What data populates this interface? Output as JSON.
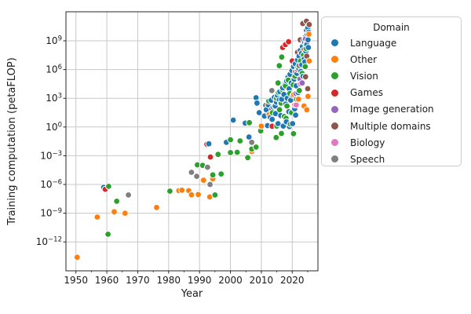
{
  "chart_data": {
    "type": "scatter",
    "title": "",
    "xlabel": "Year",
    "ylabel": "Training computation (petaFLOP)",
    "legend_title": "Domain",
    "legend_position": "upper right",
    "grid": true,
    "x_axis": {
      "min": 1946.8,
      "max": 2028.3,
      "major_ticks": [
        1950,
        1960,
        1970,
        1980,
        1990,
        2000,
        2010,
        2020
      ],
      "minor_ticks": [
        1955,
        1965,
        1975,
        1985,
        1995,
        2005,
        2015,
        2025
      ]
    },
    "y_axis": {
      "scale": "log10",
      "unit": "petaFLOP",
      "min_exponent": -15.0,
      "max_exponent": 12.0,
      "major_tick_exponents": [
        9,
        6,
        3,
        0,
        -3,
        -6,
        -9,
        -12
      ]
    },
    "point_style": {
      "radius": 3.9,
      "edge_color": "#ffffff"
    },
    "note": "points are [year, log10(training computation in petaFLOP)]",
    "series": [
      {
        "name": "Language",
        "color": "#1f77b4",
        "points": [
          [
            1959.0,
            -6.3
          ],
          [
            1993.0,
            -1.75
          ],
          [
            1998.7,
            -1.6
          ],
          [
            2000.9,
            0.72
          ],
          [
            2004.8,
            0.4
          ],
          [
            2006.0,
            -1.04
          ],
          [
            2008.3,
            3.06
          ],
          [
            2008.6,
            2.5
          ],
          [
            2009.3,
            1.5
          ],
          [
            2011.0,
            1.15
          ],
          [
            2011.6,
            1.8
          ],
          [
            2012.0,
            0.15
          ],
          [
            2012.3,
            2.3
          ],
          [
            2012.9,
            1.0
          ],
          [
            2013.2,
            2.8
          ],
          [
            2013.5,
            0.8
          ],
          [
            2013.8,
            2.1
          ],
          [
            2014.2,
            3.1
          ],
          [
            2014.5,
            2.2
          ],
          [
            2014.6,
            1.4
          ],
          [
            2014.9,
            2.6
          ],
          [
            2015.2,
            3.3
          ],
          [
            2015.4,
            0.35
          ],
          [
            2015.8,
            2.85
          ],
          [
            2016.0,
            3.7
          ],
          [
            2016.3,
            1.2
          ],
          [
            2016.6,
            2.9
          ],
          [
            2016.9,
            4.1
          ],
          [
            2017.1,
            0.1
          ],
          [
            2017.3,
            3.4
          ],
          [
            2017.6,
            4.4
          ],
          [
            2017.9,
            2.4
          ],
          [
            2018.1,
            0.55
          ],
          [
            2018.2,
            4.8
          ],
          [
            2018.4,
            3.0
          ],
          [
            2018.6,
            5.2
          ],
          [
            2018.9,
            1.6
          ],
          [
            2019.0,
            4.0
          ],
          [
            2019.1,
            0.05
          ],
          [
            2019.3,
            5.5
          ],
          [
            2019.5,
            2.8
          ],
          [
            2019.7,
            4.6
          ],
          [
            2019.9,
            5.9
          ],
          [
            2020.1,
            0.35
          ],
          [
            2020.2,
            3.3
          ],
          [
            2020.4,
            6.3
          ],
          [
            2020.6,
            5.0
          ],
          [
            2020.8,
            1.9
          ],
          [
            2021.0,
            6.6
          ],
          [
            2021.1,
            1.25
          ],
          [
            2021.3,
            4.3
          ],
          [
            2021.5,
            5.6
          ],
          [
            2021.7,
            7.0
          ],
          [
            2021.9,
            3.6
          ],
          [
            2022.1,
            6.1
          ],
          [
            2022.2,
            7.4
          ],
          [
            2022.4,
            4.9
          ],
          [
            2022.6,
            8.0
          ],
          [
            2022.8,
            5.8
          ],
          [
            2023.0,
            7.7
          ],
          [
            2023.1,
            6.5
          ],
          [
            2023.3,
            8.4
          ],
          [
            2023.5,
            5.3
          ],
          [
            2023.7,
            9.0
          ],
          [
            2023.9,
            7.1
          ],
          [
            2024.0,
            8.8
          ],
          [
            2024.1,
            6.8
          ],
          [
            2024.3,
            9.4
          ],
          [
            2024.4,
            7.9
          ],
          [
            2024.6,
            10.1
          ],
          [
            2024.7,
            8.6
          ],
          [
            2024.9,
            9.7
          ],
          [
            2025.0,
            10.35
          ],
          [
            2025.1,
            9.1
          ],
          [
            2025.2,
            8.3
          ],
          [
            2025.3,
            9.9
          ]
        ]
      },
      {
        "name": "Other",
        "color": "#ff7f0e",
        "points": [
          [
            1950.4,
            -13.6
          ],
          [
            1956.9,
            -9.4
          ],
          [
            1962.4,
            -8.85
          ],
          [
            1965.9,
            -9.0
          ],
          [
            1976.1,
            -8.4
          ],
          [
            1983.3,
            -6.65
          ],
          [
            1984.3,
            -6.6
          ],
          [
            1986.5,
            -6.65
          ],
          [
            1987.4,
            -7.07
          ],
          [
            1989.6,
            -7.05
          ],
          [
            1991.3,
            -5.56
          ],
          [
            1993.3,
            -7.3
          ],
          [
            1994.3,
            -5.4
          ],
          [
            2006.9,
            -2.56
          ],
          [
            2010.0,
            0.1
          ],
          [
            2012.5,
            1.3
          ],
          [
            2016.2,
            2.45
          ],
          [
            2020.5,
            3.4
          ],
          [
            2022.0,
            2.9
          ],
          [
            2023.8,
            2.2
          ],
          [
            2024.7,
            1.8
          ],
          [
            2025.1,
            3.2
          ],
          [
            2025.4,
            9.7
          ],
          [
            2025.5,
            6.9
          ]
        ]
      },
      {
        "name": "Vision",
        "color": "#2ca02c",
        "points": [
          [
            1960.4,
            -11.2
          ],
          [
            1960.6,
            -6.2
          ],
          [
            1963.2,
            -7.75
          ],
          [
            1980.4,
            -6.7
          ],
          [
            1989.3,
            -3.95
          ],
          [
            1991.0,
            -4.0
          ],
          [
            1994.3,
            -5.0
          ],
          [
            1995.0,
            -7.1
          ],
          [
            1996.0,
            -2.86
          ],
          [
            1997.0,
            -4.9
          ],
          [
            2000.0,
            -2.67
          ],
          [
            2000.0,
            -1.33
          ],
          [
            2002.2,
            -2.64
          ],
          [
            2003.1,
            -1.45
          ],
          [
            2005.6,
            -3.2
          ],
          [
            2006.1,
            0.45
          ],
          [
            2006.9,
            -2.3
          ],
          [
            2008.3,
            -2.1
          ],
          [
            2009.8,
            -0.4
          ],
          [
            2012.4,
            2.7
          ],
          [
            2013.6,
            1.5
          ],
          [
            2014.3,
            2.2
          ],
          [
            2014.8,
            -1.1
          ],
          [
            2014.9,
            3.0
          ],
          [
            2015.0,
            0.1
          ],
          [
            2015.4,
            4.6
          ],
          [
            2015.5,
            3.6
          ],
          [
            2015.8,
            6.4
          ],
          [
            2015.9,
            1.8
          ],
          [
            2016.4,
            2.5
          ],
          [
            2016.5,
            -0.67
          ],
          [
            2016.6,
            7.3
          ],
          [
            2016.8,
            3.9
          ],
          [
            2017.4,
            1.1
          ],
          [
            2017.8,
            4.3
          ],
          [
            2018.0,
            0.9
          ],
          [
            2018.3,
            2.2
          ],
          [
            2018.7,
            4.9
          ],
          [
            2019.2,
            3.5
          ],
          [
            2019.4,
            0.3
          ],
          [
            2019.8,
            1.5
          ],
          [
            2020.3,
            4.4
          ],
          [
            2020.4,
            -0.7
          ],
          [
            2020.9,
            5.3
          ],
          [
            2021.4,
            2.9
          ],
          [
            2021.8,
            6.2
          ],
          [
            2022.3,
            3.8
          ],
          [
            2022.7,
            6.9
          ],
          [
            2023.2,
            5.6
          ],
          [
            2023.6,
            7.5
          ],
          [
            2024.2,
            6.3
          ],
          [
            2024.5,
            8.2
          ]
        ]
      },
      {
        "name": "Games",
        "color": "#d62728",
        "points": [
          [
            1959.5,
            -6.5
          ],
          [
            1992.4,
            -1.8
          ],
          [
            1993.5,
            -3.13
          ],
          [
            2013.4,
            1.9
          ],
          [
            2013.5,
            0.08
          ],
          [
            2016.9,
            8.3
          ],
          [
            2017.8,
            8.6
          ],
          [
            2018.8,
            8.9
          ],
          [
            2020.0,
            6.9
          ],
          [
            2020.9,
            2.3
          ],
          [
            2021.7,
            6.0
          ]
        ]
      },
      {
        "name": "Image generation",
        "color": "#9467bd",
        "points": [
          [
            2021.2,
            3.5
          ],
          [
            2022.5,
            5.0
          ],
          [
            2023.2,
            4.6
          ],
          [
            2024.3,
            9.2
          ]
        ]
      },
      {
        "name": "Multiple domains",
        "color": "#8c564b",
        "points": [
          [
            2021.7,
            7.8
          ],
          [
            2022.6,
            9.1
          ],
          [
            2023.4,
            10.8
          ],
          [
            2023.9,
            8.1
          ],
          [
            2024.3,
            5.25
          ],
          [
            2024.6,
            11.05
          ],
          [
            2024.7,
            7.4
          ],
          [
            2025.0,
            4.0
          ],
          [
            2025.5,
            10.7
          ]
        ]
      },
      {
        "name": "Biology",
        "color": "#e377c2",
        "points": [
          [
            2021.3,
            2.3
          ],
          [
            2022.6,
            4.5
          ],
          [
            2024.5,
            8.7
          ]
        ]
      },
      {
        "name": "Speech",
        "color": "#7f7f7f",
        "points": [
          [
            1967.0,
            -7.1
          ],
          [
            1987.4,
            -4.73
          ],
          [
            1989.1,
            -5.15
          ],
          [
            1992.6,
            -4.2
          ],
          [
            1993.4,
            -6.0
          ],
          [
            2006.9,
            -1.6
          ],
          [
            2011.4,
            2.25
          ],
          [
            2013.4,
            3.8
          ],
          [
            2017.5,
            4.5
          ],
          [
            2021.0,
            5.75
          ],
          [
            2022.2,
            6.4
          ]
        ]
      }
    ]
  },
  "colors": {
    "grid": "#c8c8c8",
    "spine": "#262626",
    "text": "#1a1a1a",
    "background": "#ffffff",
    "legend_border": "#cccccc"
  }
}
